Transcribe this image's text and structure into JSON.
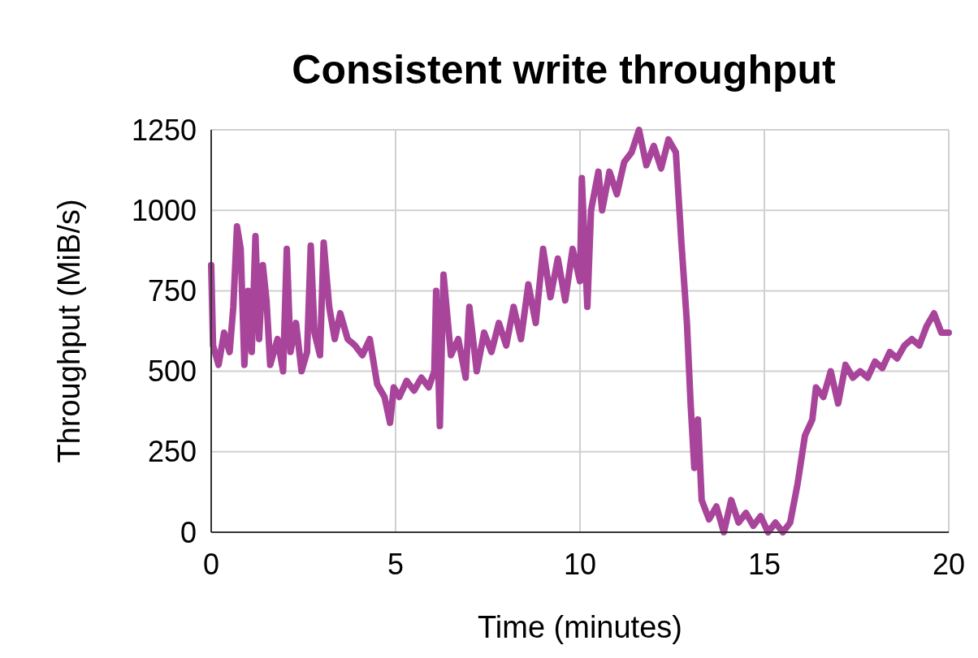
{
  "chart_data": {
    "type": "line",
    "title": "Consistent write throughput",
    "xlabel": "Time (minutes)",
    "ylabel": "Throughput (MiB/s)",
    "xlim": [
      0,
      20
    ],
    "xticks": [
      0,
      5,
      10,
      15,
      20
    ],
    "ylim": [
      0,
      1250
    ],
    "yticks": [
      0,
      250,
      500,
      750,
      1000,
      1250
    ],
    "grid": true,
    "marker": "none",
    "line_style": "solid",
    "series": [
      {
        "color": "#a8459b",
        "x": [
          0,
          0.05,
          0.2,
          0.35,
          0.5,
          0.6,
          0.7,
          0.8,
          0.9,
          1.0,
          1.1,
          1.2,
          1.3,
          1.4,
          1.5,
          1.6,
          1.8,
          1.95,
          2.05,
          2.15,
          2.3,
          2.45,
          2.6,
          2.7,
          2.8,
          2.95,
          3.05,
          3.2,
          3.35,
          3.5,
          3.7,
          3.9,
          4.1,
          4.3,
          4.5,
          4.7,
          4.85,
          4.95,
          5.1,
          5.3,
          5.5,
          5.7,
          5.9,
          6.05,
          6.1,
          6.2,
          6.3,
          6.5,
          6.7,
          6.9,
          7.0,
          7.2,
          7.4,
          7.6,
          7.8,
          8.0,
          8.2,
          8.4,
          8.6,
          8.8,
          9.0,
          9.2,
          9.4,
          9.6,
          9.8,
          10.0,
          10.05,
          10.2,
          10.3,
          10.5,
          10.6,
          10.8,
          11.0,
          11.2,
          11.4,
          11.6,
          11.8,
          12.0,
          12.2,
          12.4,
          12.6,
          12.75,
          12.9,
          13.0,
          13.1,
          13.2,
          13.3,
          13.5,
          13.7,
          13.9,
          14.1,
          14.3,
          14.5,
          14.7,
          14.9,
          15.1,
          15.3,
          15.5,
          15.7,
          15.9,
          16.1,
          16.3,
          16.4,
          16.6,
          16.8,
          17.0,
          17.2,
          17.4,
          17.6,
          17.8,
          18.0,
          18.2,
          18.4,
          18.6,
          18.8,
          19.0,
          19.2,
          19.4,
          19.6,
          19.8,
          20.0
        ],
        "values": [
          830,
          580,
          520,
          620,
          560,
          700,
          950,
          880,
          520,
          750,
          560,
          920,
          600,
          830,
          720,
          520,
          600,
          500,
          880,
          560,
          650,
          500,
          560,
          890,
          620,
          550,
          900,
          700,
          600,
          680,
          600,
          580,
          550,
          600,
          460,
          420,
          340,
          450,
          420,
          470,
          440,
          480,
          450,
          500,
          750,
          330,
          800,
          550,
          600,
          480,
          700,
          500,
          620,
          560,
          650,
          580,
          700,
          600,
          770,
          650,
          880,
          730,
          850,
          720,
          880,
          780,
          1100,
          700,
          1000,
          1120,
          1000,
          1120,
          1050,
          1150,
          1180,
          1250,
          1140,
          1200,
          1130,
          1220,
          1180,
          900,
          650,
          400,
          200,
          350,
          100,
          40,
          80,
          0,
          100,
          30,
          60,
          20,
          50,
          0,
          30,
          0,
          30,
          150,
          300,
          350,
          450,
          420,
          500,
          400,
          520,
          480,
          500,
          480,
          530,
          510,
          560,
          540,
          580,
          600,
          580,
          640,
          680,
          620,
          620
        ]
      }
    ]
  }
}
